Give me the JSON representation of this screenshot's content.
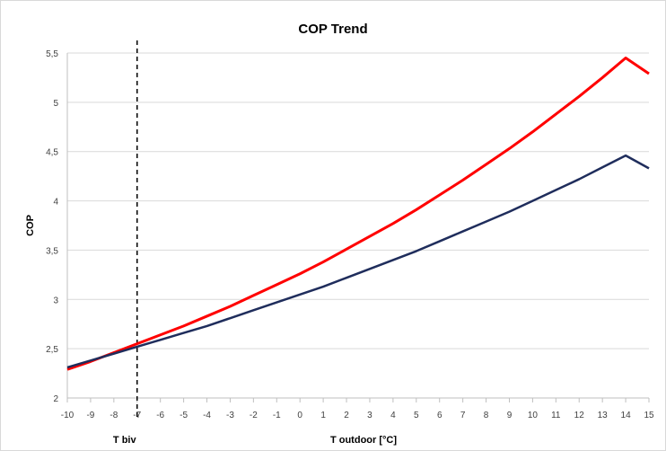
{
  "chart_data": {
    "type": "line",
    "title": "COP Trend",
    "xlabel": "T outdoor [°C]",
    "ylabel": "COP",
    "xlim": [
      -10,
      15
    ],
    "ylim": [
      2,
      5.5
    ],
    "grid": true,
    "legend": "none",
    "x_ticks": [
      "-10",
      "-9",
      "-8",
      "-7",
      "-6",
      "-5",
      "-4",
      "-3",
      "-2",
      "-1",
      "0",
      "1",
      "2",
      "3",
      "4",
      "5",
      "6",
      "7",
      "8",
      "9",
      "10",
      "11",
      "12",
      "13",
      "14",
      "15"
    ],
    "y_ticks": [
      "2",
      "2,5",
      "3",
      "3,5",
      "4",
      "4,5",
      "5",
      "5,5"
    ],
    "x": [
      -10,
      -9,
      -8,
      -7,
      -6,
      -5,
      -4,
      -3,
      -2,
      -1,
      0,
      1,
      2,
      3,
      4,
      5,
      6,
      7,
      8,
      9,
      10,
      11,
      12,
      13,
      14,
      15
    ],
    "series": [
      {
        "color": "#ff0000",
        "values": [
          2.29,
          2.37,
          2.46,
          2.55,
          2.64,
          2.73,
          2.83,
          2.93,
          3.04,
          3.15,
          3.26,
          3.38,
          3.51,
          3.64,
          3.77,
          3.91,
          4.06,
          4.21,
          4.37,
          4.53,
          4.7,
          4.88,
          5.06,
          5.25,
          5.45,
          5.29
        ]
      },
      {
        "color": "#1f2d5c",
        "values": [
          2.31,
          2.38,
          2.45,
          2.52,
          2.59,
          2.66,
          2.73,
          2.81,
          2.89,
          2.97,
          3.05,
          3.13,
          3.22,
          3.31,
          3.4,
          3.49,
          3.59,
          3.69,
          3.79,
          3.89,
          4.0,
          4.11,
          4.22,
          4.34,
          4.46,
          4.33
        ]
      }
    ],
    "vertical_marker": {
      "x": -7,
      "label": "T biv",
      "color": "#000000",
      "style": "dashed"
    }
  }
}
